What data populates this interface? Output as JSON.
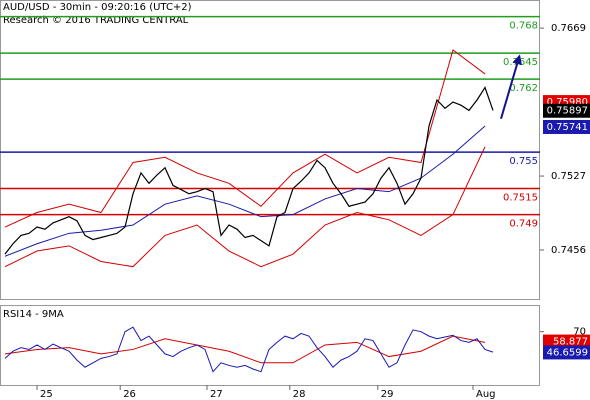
{
  "chart_data": [
    {
      "type": "line",
      "title": "AUD/USD - 30min - 09:20:16 (UTC+2)",
      "subtitle": "Research © 2016 TRADING CENTRAL",
      "x": [
        0,
        1,
        2,
        3,
        4,
        5,
        6,
        7,
        8,
        9,
        10,
        11,
        12,
        13,
        14,
        15,
        16,
        17,
        18,
        19,
        20,
        21,
        22,
        23,
        24,
        25,
        26,
        27,
        28,
        29,
        30,
        31,
        32,
        33,
        34,
        35,
        36,
        37,
        38,
        39,
        40,
        41,
        42,
        43,
        44,
        45,
        46,
        47,
        48,
        49,
        50,
        51,
        52,
        53,
        54,
        55,
        56,
        57,
        58,
        59,
        60,
        61
      ],
      "values": [
        0.7452,
        0.7462,
        0.747,
        0.7472,
        0.7478,
        0.7476,
        0.7482,
        0.7485,
        0.7488,
        0.7484,
        0.747,
        0.7466,
        0.7468,
        0.747,
        0.7472,
        0.7478,
        0.751,
        0.753,
        0.752,
        0.7528,
        0.7535,
        0.7518,
        0.7514,
        0.751,
        0.7512,
        0.7515,
        0.7512,
        0.747,
        0.748,
        0.7476,
        0.7468,
        0.747,
        0.7465,
        0.746,
        0.7488,
        0.7492,
        0.7515,
        0.7522,
        0.753,
        0.7542,
        0.7535,
        0.752,
        0.751,
        0.7498,
        0.75,
        0.7502,
        0.751,
        0.7525,
        0.7535,
        0.752,
        0.75,
        0.751,
        0.7525,
        0.7575,
        0.76,
        0.7592,
        0.7598,
        0.7595,
        0.759,
        0.76,
        0.7612,
        0.759
      ],
      "color": "#000000",
      "xlim": [
        0,
        66
      ],
      "ylim": [
        0.7408,
        0.7696
      ],
      "yticks": [
        0.7456,
        0.7527,
        0.7669
      ],
      "levels": [
        {
          "value": 0.768,
          "color": "#1f9e1f"
        },
        {
          "value": 0.7645,
          "color": "#1f9e1f"
        },
        {
          "value": 0.762,
          "color": "#1f9e1f"
        },
        {
          "value": 0.755,
          "color": "#1a1aa6"
        },
        {
          "value": 0.7515,
          "color": "#d40000"
        },
        {
          "value": 0.749,
          "color": "#d40000"
        }
      ],
      "bands": {
        "x": [
          0,
          4,
          8,
          12,
          16,
          20,
          24,
          28,
          32,
          36,
          40,
          44,
          48,
          52,
          56,
          60
        ],
        "upper": [
          0.7478,
          0.7492,
          0.75,
          0.7492,
          0.754,
          0.7545,
          0.753,
          0.752,
          0.7498,
          0.753,
          0.7548,
          0.753,
          0.7545,
          0.754,
          0.7648,
          0.7625
        ],
        "lower": [
          0.744,
          0.7455,
          0.746,
          0.7445,
          0.744,
          0.747,
          0.748,
          0.7455,
          0.744,
          0.7452,
          0.748,
          0.7492,
          0.7485,
          0.747,
          0.749,
          0.7555
        ],
        "ma": [
          0.745,
          0.7462,
          0.7472,
          0.7475,
          0.748,
          0.75,
          0.7508,
          0.75,
          0.7488,
          0.749,
          0.7505,
          0.7515,
          0.7512,
          0.7525,
          0.7548,
          0.7575
        ],
        "band_color": "#d40000",
        "ma_color": "#1a1aa6"
      },
      "forecast": {
        "x": [
          62,
          64.3
        ],
        "values": [
          0.7582,
          0.7642
        ],
        "color": "#12128c"
      },
      "price_tags": [
        {
          "value": 0.7598,
          "label": "0.75980",
          "color": "#e00000"
        },
        {
          "value": 0.75897,
          "color": "#000000"
        },
        {
          "value": 0.75741,
          "color": "#1a1ab0"
        }
      ]
    },
    {
      "type": "line",
      "title": "RSI14 - 9MA",
      "x": [
        0,
        1,
        2,
        3,
        4,
        5,
        6,
        7,
        8,
        9,
        10,
        11,
        12,
        13,
        14,
        15,
        16,
        17,
        18,
        19,
        20,
        21,
        22,
        23,
        24,
        25,
        26,
        27,
        28,
        29,
        30,
        31,
        32,
        33,
        34,
        35,
        36,
        37,
        38,
        39,
        40,
        41,
        42,
        43,
        44,
        45,
        46,
        47,
        48,
        49,
        50,
        51,
        52,
        53,
        54,
        55,
        56,
        57,
        58,
        59,
        60,
        61
      ],
      "values": [
        40,
        48,
        52,
        50,
        55,
        50,
        56,
        52,
        48,
        38,
        30,
        35,
        40,
        42,
        45,
        70,
        75,
        60,
        65,
        55,
        45,
        42,
        48,
        52,
        55,
        50,
        25,
        35,
        32,
        30,
        32,
        28,
        25,
        50,
        58,
        65,
        62,
        68,
        65,
        52,
        42,
        30,
        38,
        42,
        48,
        62,
        60,
        45,
        30,
        35,
        55,
        72,
        70,
        65,
        62,
        64,
        66,
        60,
        58,
        62,
        50,
        47
      ],
      "color": "#1a1ab0",
      "ma_x": [
        0,
        4,
        8,
        12,
        16,
        20,
        24,
        28,
        32,
        36,
        40,
        44,
        48,
        52,
        56,
        60
      ],
      "ma": [
        45,
        50,
        52,
        45,
        50,
        62,
        55,
        48,
        35,
        35,
        55,
        58,
        42,
        48,
        65,
        58
      ],
      "ma_color": "#d40000",
      "xlim": [
        0,
        66
      ],
      "ylim": [
        10,
        100
      ],
      "yticks": [
        70
      ],
      "xticks": [
        {
          "value": 4,
          "label": "25"
        },
        {
          "value": 14.4,
          "label": "26"
        },
        {
          "value": 25.25,
          "label": "27"
        },
        {
          "value": 35.6,
          "label": "28"
        },
        {
          "value": 46.6,
          "label": "29"
        },
        {
          "value": 58.5,
          "label": "Aug"
        }
      ],
      "price_tags": [
        {
          "value": 58.877,
          "color": "#e00000"
        },
        {
          "value": 46.6599,
          "color": "#1a1ab0"
        }
      ]
    }
  ]
}
